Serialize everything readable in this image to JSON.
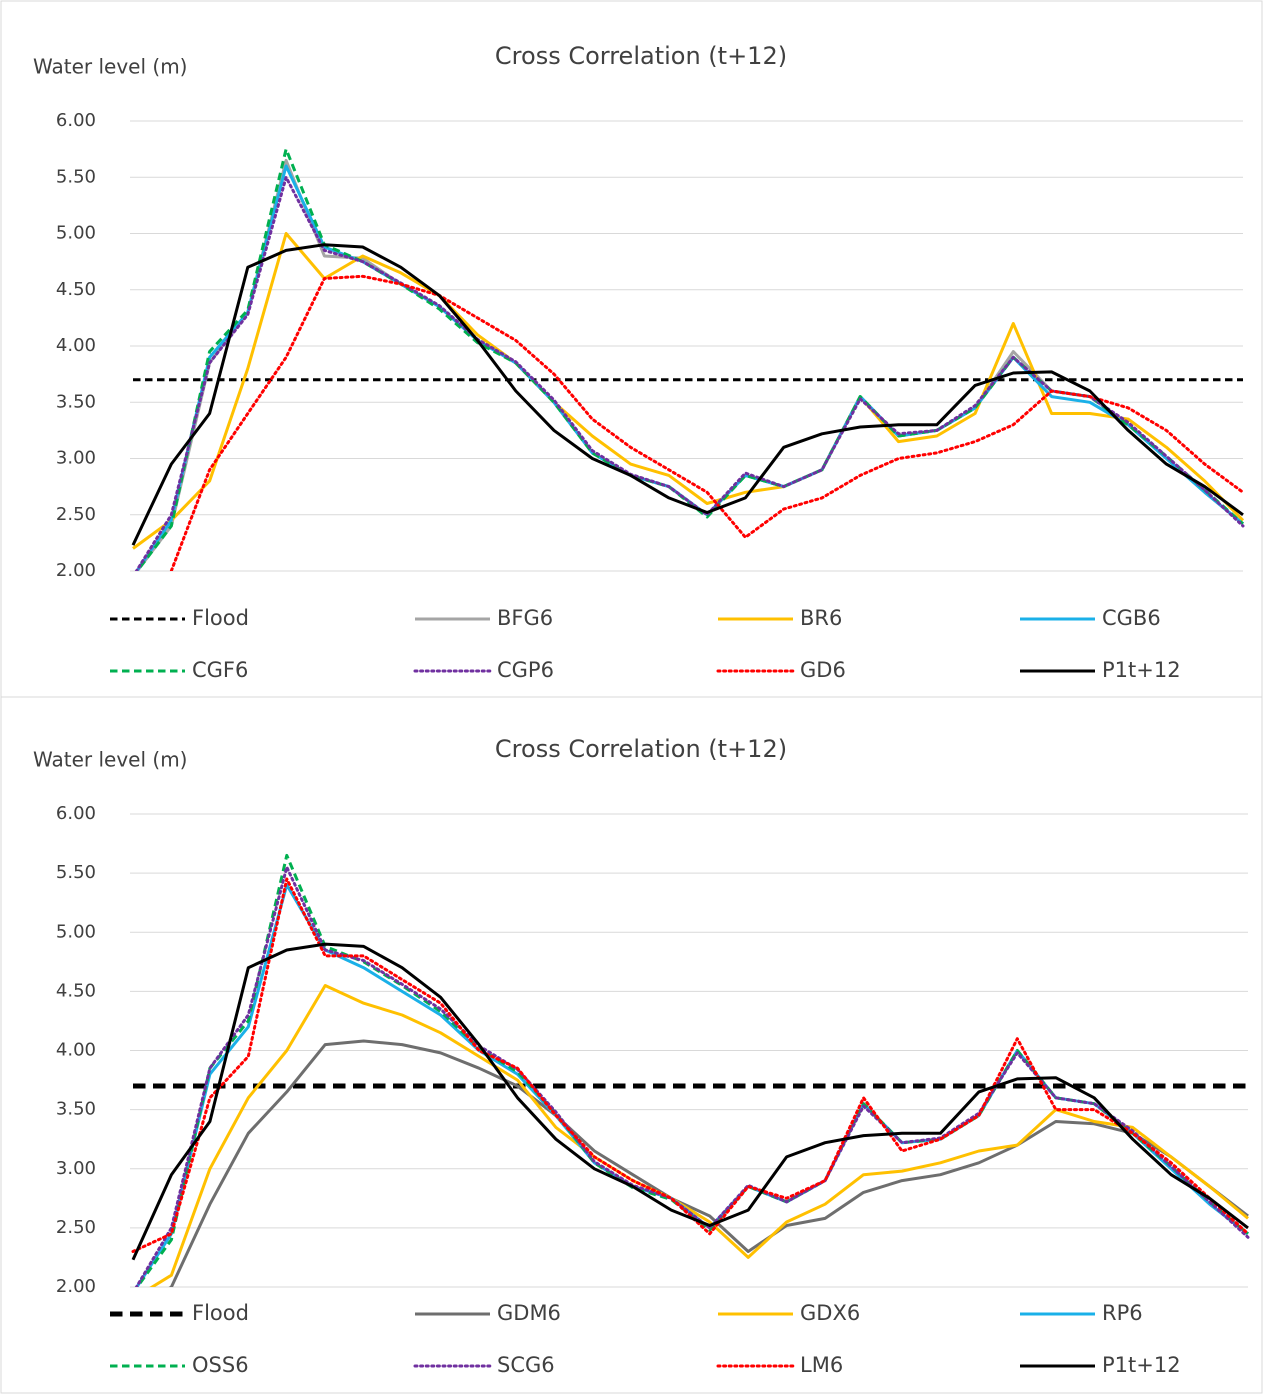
{
  "chart_data": [
    {
      "type": "line",
      "title": "Cross Correlation (t+12)",
      "y_label": "Water level (m)",
      "ylim": [
        2,
        6
      ],
      "yticks": [
        {
          "value": 2,
          "label": "2.00"
        },
        {
          "value": 2.5,
          "label": "2.50"
        },
        {
          "value": 3,
          "label": "3.00"
        },
        {
          "value": 3.5,
          "label": "3.50"
        },
        {
          "value": 4,
          "label": "4.00"
        },
        {
          "value": 4.5,
          "label": "4.50"
        },
        {
          "value": 5,
          "label": "5.00"
        },
        {
          "value": 5.5,
          "label": "5.50"
        },
        {
          "value": 6,
          "label": "6.00"
        }
      ],
      "grid": true,
      "legend": "bottom",
      "series": [
        {
          "name": "Flood",
          "color": "#000000",
          "style": "dashed",
          "width": 3,
          "values": [
            3.7,
            3.7,
            3.7,
            3.7,
            3.7,
            3.7,
            3.7,
            3.7,
            3.7,
            3.7,
            3.7,
            3.7,
            3.7,
            3.7,
            3.7,
            3.7,
            3.7,
            3.7,
            3.7,
            3.7,
            3.7,
            3.7,
            3.7,
            3.7,
            3.7,
            3.7,
            3.7,
            3.7,
            3.7,
            3.7
          ]
        },
        {
          "name": "BFG6",
          "color": "#a5a5a5",
          "style": "solid",
          "width": 3,
          "values": [
            1.95,
            2.4,
            3.85,
            4.3,
            5.65,
            4.8,
            4.78,
            4.55,
            4.35,
            4.05,
            3.85,
            3.5,
            3.05,
            2.85,
            2.75,
            2.5,
            2.85,
            2.75,
            2.9,
            3.55,
            3.2,
            3.25,
            3.45,
            3.95,
            3.6,
            3.55,
            3.3,
            3.0,
            2.7,
            2.42
          ]
        },
        {
          "name": "BR6",
          "color": "#ffc000",
          "style": "solid",
          "width": 3,
          "values": [
            2.2,
            2.45,
            2.8,
            3.8,
            5.0,
            4.6,
            4.8,
            4.65,
            4.45,
            4.1,
            3.85,
            3.5,
            3.2,
            2.95,
            2.85,
            2.6,
            2.7,
            2.75,
            2.9,
            3.55,
            3.15,
            3.2,
            3.4,
            4.2,
            3.4,
            3.4,
            3.35,
            3.1,
            2.8,
            2.45
          ]
        },
        {
          "name": "CGB6",
          "color": "#1ab0e8",
          "style": "solid",
          "width": 3,
          "values": [
            1.95,
            2.45,
            3.9,
            4.3,
            5.6,
            4.88,
            4.75,
            4.55,
            4.35,
            4.05,
            3.85,
            3.5,
            3.05,
            2.85,
            2.75,
            2.5,
            2.85,
            2.75,
            2.9,
            3.55,
            3.2,
            3.25,
            3.45,
            3.9,
            3.55,
            3.5,
            3.3,
            3.0,
            2.7,
            2.42
          ]
        },
        {
          "name": "CGF6",
          "color": "#00b050",
          "style": "dashed",
          "width": 3,
          "values": [
            1.95,
            2.4,
            3.95,
            4.32,
            5.75,
            4.9,
            4.75,
            4.55,
            4.33,
            4.03,
            3.85,
            3.5,
            3.05,
            2.85,
            2.75,
            2.48,
            2.85,
            2.75,
            2.9,
            3.55,
            3.2,
            3.25,
            3.45,
            3.9,
            3.6,
            3.55,
            3.3,
            3.02,
            2.72,
            2.42
          ]
        },
        {
          "name": "CGP6",
          "color": "#7030a0",
          "style": "dotted",
          "width": 3,
          "values": [
            1.95,
            2.5,
            3.85,
            4.28,
            5.5,
            4.85,
            4.75,
            4.56,
            4.36,
            4.06,
            3.86,
            3.52,
            3.07,
            2.86,
            2.75,
            2.5,
            2.87,
            2.75,
            2.9,
            3.53,
            3.22,
            3.25,
            3.47,
            3.9,
            3.6,
            3.55,
            3.32,
            3.02,
            2.72,
            2.4
          ]
        },
        {
          "name": "GD6",
          "color": "#ff0000",
          "style": "dotted",
          "width": 3,
          "values": [
            1.8,
            2.0,
            2.9,
            3.4,
            3.9,
            4.6,
            4.62,
            4.55,
            4.45,
            4.25,
            4.05,
            3.75,
            3.35,
            3.1,
            2.9,
            2.7,
            2.3,
            2.55,
            2.65,
            2.85,
            3.0,
            3.05,
            3.15,
            3.3,
            3.6,
            3.55,
            3.45,
            3.25,
            2.95,
            2.7
          ]
        },
        {
          "name": "P1t+12",
          "color": "#000000",
          "style": "solid",
          "width": 3,
          "values": [
            2.23,
            2.95,
            3.4,
            4.7,
            4.85,
            4.9,
            4.88,
            4.7,
            4.45,
            4.05,
            3.6,
            3.25,
            3.0,
            2.85,
            2.65,
            2.52,
            2.65,
            3.1,
            3.22,
            3.28,
            3.3,
            3.3,
            3.65,
            3.76,
            3.77,
            3.6,
            3.25,
            2.95,
            2.75,
            2.5
          ]
        }
      ]
    },
    {
      "type": "line",
      "title": "Cross Correlation (t+12)",
      "y_label": "Water level (m)",
      "ylim": [
        2,
        6
      ],
      "yticks": [
        {
          "value": 2,
          "label": "2.00"
        },
        {
          "value": 2.5,
          "label": "2.50"
        },
        {
          "value": 3,
          "label": "3.00"
        },
        {
          "value": 3.5,
          "label": "3.50"
        },
        {
          "value": 4,
          "label": "4.00"
        },
        {
          "value": 4.5,
          "label": "4.50"
        },
        {
          "value": 5,
          "label": "5.00"
        },
        {
          "value": 5.5,
          "label": "5.50"
        },
        {
          "value": 6,
          "label": "6.00"
        }
      ],
      "grid": true,
      "legend": "bottom",
      "series": [
        {
          "name": "Flood",
          "color": "#000000",
          "style": "dashed",
          "width": 5,
          "values": [
            3.7,
            3.7,
            3.7,
            3.7,
            3.7,
            3.7,
            3.7,
            3.7,
            3.7,
            3.7,
            3.7,
            3.7,
            3.7,
            3.7,
            3.7,
            3.7,
            3.7,
            3.7,
            3.7,
            3.7,
            3.7,
            3.7,
            3.7,
            3.7,
            3.7,
            3.7,
            3.7,
            3.7,
            3.7,
            3.7
          ]
        },
        {
          "name": "GDM6",
          "color": "#6e6e6e",
          "style": "solid",
          "width": 3,
          "values": [
            1.8,
            2.0,
            2.7,
            3.3,
            3.65,
            4.05,
            4.08,
            4.05,
            3.98,
            3.85,
            3.7,
            3.45,
            3.15,
            2.95,
            2.75,
            2.6,
            2.3,
            2.52,
            2.58,
            2.8,
            2.9,
            2.95,
            3.05,
            3.2,
            3.4,
            3.38,
            3.3,
            3.1,
            2.85,
            2.6
          ]
        },
        {
          "name": "GDX6",
          "color": "#ffc000",
          "style": "solid",
          "width": 3,
          "values": [
            1.9,
            2.1,
            3.0,
            3.6,
            4.0,
            4.55,
            4.4,
            4.3,
            4.15,
            3.95,
            3.75,
            3.35,
            3.1,
            2.9,
            2.75,
            2.55,
            2.25,
            2.55,
            2.7,
            2.95,
            2.98,
            3.05,
            3.15,
            3.2,
            3.5,
            3.4,
            3.35,
            3.1,
            2.85,
            2.58
          ]
        },
        {
          "name": "RP6",
          "color": "#1ab0e8",
          "style": "solid",
          "width": 3,
          "values": [
            1.95,
            2.45,
            3.8,
            4.2,
            5.4,
            4.85,
            4.7,
            4.5,
            4.3,
            4.0,
            3.8,
            3.45,
            3.05,
            2.85,
            2.75,
            2.5,
            2.85,
            2.72,
            2.9,
            3.55,
            3.22,
            3.25,
            3.45,
            4.0,
            3.6,
            3.55,
            3.3,
            3.0,
            2.7,
            2.45
          ]
        },
        {
          "name": "OSS6",
          "color": "#00b050",
          "style": "dashed",
          "width": 3,
          "values": [
            1.95,
            2.4,
            3.85,
            4.25,
            5.65,
            4.88,
            4.75,
            4.55,
            4.33,
            4.02,
            3.82,
            3.47,
            3.05,
            2.84,
            2.74,
            2.48,
            2.85,
            2.72,
            2.9,
            3.55,
            3.22,
            3.25,
            3.45,
            4.0,
            3.6,
            3.55,
            3.3,
            3.02,
            2.72,
            2.45
          ]
        },
        {
          "name": "SCG6",
          "color": "#7030a0",
          "style": "dotted",
          "width": 3,
          "values": [
            1.95,
            2.5,
            3.85,
            4.3,
            5.55,
            4.85,
            4.76,
            4.56,
            4.35,
            4.04,
            3.84,
            3.48,
            3.06,
            2.86,
            2.75,
            2.5,
            2.86,
            2.72,
            2.9,
            3.53,
            3.22,
            3.26,
            3.47,
            3.98,
            3.6,
            3.55,
            3.32,
            3.02,
            2.72,
            2.42
          ]
        },
        {
          "name": "LM6",
          "color": "#ff0000",
          "style": "dotted",
          "width": 3,
          "values": [
            2.3,
            2.45,
            3.6,
            3.95,
            5.45,
            4.8,
            4.8,
            4.6,
            4.4,
            4.0,
            3.85,
            3.45,
            3.1,
            2.9,
            2.75,
            2.45,
            2.85,
            2.75,
            2.9,
            3.6,
            3.15,
            3.25,
            3.45,
            4.1,
            3.5,
            3.5,
            3.3,
            3.05,
            2.75,
            2.45
          ]
        },
        {
          "name": "P1t+12",
          "color": "#000000",
          "style": "solid",
          "width": 3,
          "values": [
            2.23,
            2.95,
            3.4,
            4.7,
            4.85,
            4.9,
            4.88,
            4.7,
            4.45,
            4.05,
            3.6,
            3.25,
            3.0,
            2.85,
            2.65,
            2.52,
            2.65,
            3.1,
            3.22,
            3.28,
            3.3,
            3.3,
            3.65,
            3.76,
            3.77,
            3.6,
            3.25,
            2.95,
            2.75,
            2.5
          ]
        }
      ]
    }
  ]
}
